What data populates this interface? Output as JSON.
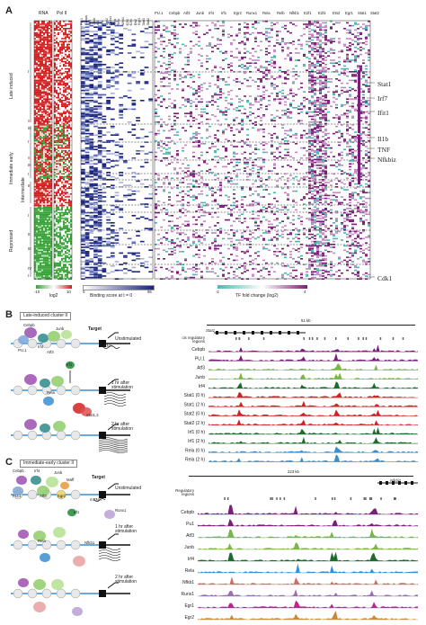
{
  "panelA": {
    "letter": "A",
    "rna_header": "RNA",
    "pol2_header": "Pol II",
    "binding_cols": [
      "PU.1",
      "Cebpb",
      "Atf3",
      "Junb",
      "Irf4",
      "Irf1",
      "Egr2",
      "Runx1",
      "Rela",
      "Relb",
      "Nfkb1",
      "E2f1",
      "E2f4",
      "Ets2",
      "Egr1",
      "Stat1",
      "Stat2"
    ],
    "tf_headers": [
      "PU.1",
      "Cebpb",
      "Atf3",
      "Junb",
      "Irf4",
      "Irf1",
      "Egr2",
      "Runx1",
      "Rela",
      "Relb",
      "Nfkb1",
      "E2f1",
      "E2f4",
      "Ets2",
      "Egr1",
      "Stat1",
      "Stat2"
    ],
    "row_groups": [
      "Late induced",
      "Immediate early",
      "Intermediate",
      "Repressed"
    ],
    "roman_marks": [
      "I",
      "II",
      "III",
      "I",
      "II",
      "III",
      "I",
      "II",
      "I",
      "II",
      "III",
      "IV",
      "I"
    ],
    "genes": [
      "Stat1",
      "Irf7",
      "Ifit1",
      "Il1b",
      "TNF",
      "Nfkbiz",
      "Cdk1"
    ],
    "legend_log2_ticks": [
      "-10",
      "10"
    ],
    "legend_log2": "log2",
    "legend_bind_ticks": [
      "0",
      "95"
    ],
    "legend_bind": "Binding score at t = 0",
    "legend_tf_ticks": [
      "-2",
      "4"
    ],
    "legend_tf": "TF fold change (log2)",
    "colors": {
      "red": "#d42020",
      "green": "#3aa43a",
      "navy": "#1a237e",
      "purple": "#7b1e7a",
      "teal": "#4fb7b0"
    }
  },
  "panelB": {
    "letter": "B",
    "title": "Late-induced cluster II",
    "target": "Target",
    "mrna": "mRNA",
    "states": [
      "Unstimulated",
      "1 hr after stimulation",
      "2 hr after stimulation"
    ],
    "proteins": [
      "Cebpb",
      "Junb",
      "PU.1",
      "Irf4",
      "Atf3",
      "Irf1",
      "Rela",
      "Stat1,2"
    ],
    "scale": "51 kb",
    "gene_label": "Stat1",
    "regions_label": "cis regulatory regions",
    "tracks": [
      {
        "name": "Cebpb",
        "color": "#7b1e7a"
      },
      {
        "name": "PU.1",
        "color": "#7b1e7a"
      },
      {
        "name": "Atf3",
        "color": "#7ab648"
      },
      {
        "name": "Junb",
        "color": "#7ab648"
      },
      {
        "name": "Irf4",
        "color": "#1f6b2e"
      },
      {
        "name": "Stat1 (0 h)",
        "color": "#d42020"
      },
      {
        "name": "Stat1 (2 h)",
        "color": "#d42020"
      },
      {
        "name": "Stat2 (0 h)",
        "color": "#d42020"
      },
      {
        "name": "Stat2 (2 h)",
        "color": "#d42020"
      },
      {
        "name": "Irf1 (0 h)",
        "color": "#1f6b2e"
      },
      {
        "name": "Irf1 (2 h)",
        "color": "#1f6b2e"
      },
      {
        "name": "Rela (0 h)",
        "color": "#3a8fd0"
      },
      {
        "name": "Rela (2 h)",
        "color": "#3a8fd0"
      }
    ]
  },
  "panelC": {
    "letter": "C",
    "title": "Immediate-early cluster II",
    "target": "Target",
    "mrna": "mRNA",
    "states": [
      "Unstimulated",
      "1 hr after stimulation",
      "2 hr after stimulation"
    ],
    "proteins": [
      "Cebpb",
      "Irf4",
      "Junb",
      "Maff",
      "PU.1",
      "Atf3",
      "Egr2",
      "Irf1",
      "Runx1",
      "Rela",
      "Nfkb1"
    ],
    "scale": "223 kb",
    "gene_label": "Nfkbiz",
    "regions_label": "Regulatory regions",
    "tracks": [
      {
        "name": "Cebpb",
        "color": "#7b1e7a"
      },
      {
        "name": "Pu1",
        "color": "#7b1e7a"
      },
      {
        "name": "Atf3",
        "color": "#7ab648"
      },
      {
        "name": "Junb",
        "color": "#7ab648"
      },
      {
        "name": "Irf4",
        "color": "#1f6b2e"
      },
      {
        "name": "Rela",
        "color": "#3a8fd0"
      },
      {
        "name": "Nfkb1",
        "color": "#d46a6a"
      },
      {
        "name": "Runx1",
        "color": "#9b6fb0"
      },
      {
        "name": "Egr1",
        "color": "#c21f8f"
      },
      {
        "name": "Egr2",
        "color": "#c98a3a"
      }
    ]
  }
}
